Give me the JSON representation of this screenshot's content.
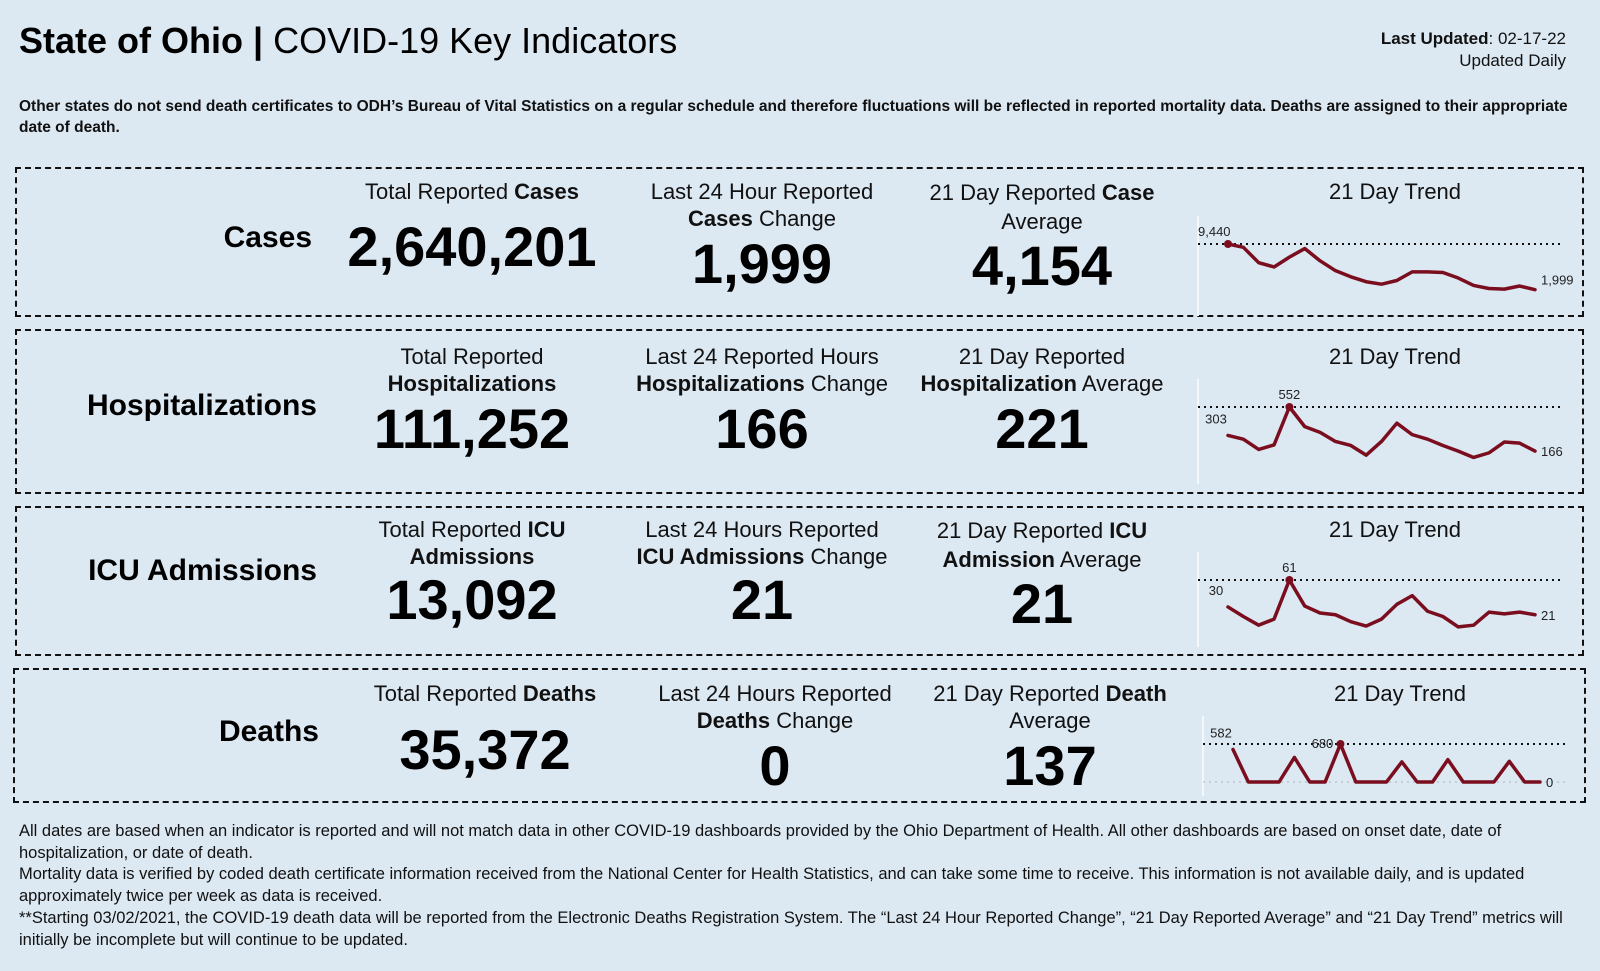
{
  "header": {
    "title_bold": "State of Ohio |",
    "title_rest": " COVID-19 Key Indicators",
    "last_updated_label": "Last Updated",
    "last_updated_value": ": 02-17-22",
    "update_frequency": "Updated Daily"
  },
  "top_note": "Other states do not send death certificates to ODH’s Bureau of Vital Statistics on a regular schedule and therefore fluctuations will be reflected in reported mortality data. Deaths are assigned to their appropriate date of death.",
  "rows": [
    {
      "label": "Cases",
      "total": {
        "pre": "Total Reported ",
        "bold": "Cases",
        "post": "",
        "value": "2,640,201"
      },
      "change": {
        "pre": "Last 24 Hour Reported ",
        "bold": "Cases",
        "post": " Change",
        "value": "1,999"
      },
      "average": {
        "pre": "21 Day Reported ",
        "bold": "Case",
        "post": " Average",
        "value": "4,154"
      },
      "trend": {
        "title": "21 Day Trend",
        "start_label": "9,440",
        "max_label": "",
        "end_label": "1,999"
      }
    },
    {
      "label": "Hospitalizations",
      "total": {
        "pre": "Total Reported ",
        "bold": "Hospitalizations",
        "post": "",
        "value": "111,252"
      },
      "change": {
        "pre": "Last 24 Reported Hours ",
        "bold": "Hospitalizations",
        "post": " Change",
        "value": "166"
      },
      "average": {
        "pre": "21 Day Reported ",
        "bold": "Hospitalization",
        "post": " Average",
        "value": "221"
      },
      "trend": {
        "title": "21 Day Trend",
        "start_label": "303",
        "max_label": "552",
        "end_label": "166"
      }
    },
    {
      "label": "ICU Admissions",
      "total": {
        "pre": "Total Reported ",
        "bold": "ICU Admissions",
        "post": "",
        "value": "13,092"
      },
      "change": {
        "pre": "Last 24 Hours Reported ",
        "bold": "ICU Admissions",
        "post": " Change",
        "value": "21"
      },
      "average": {
        "pre": "21 Day Reported ",
        "bold": "ICU Admission",
        "post": " Average",
        "value": "21"
      },
      "trend": {
        "title": "21 Day Trend",
        "start_label": "30",
        "max_label": "61",
        "end_label": "21"
      }
    },
    {
      "label": "Deaths",
      "total": {
        "pre": "Total Reported ",
        "bold": "Deaths",
        "post": "",
        "value": "35,372"
      },
      "change": {
        "pre": "Last 24 Hours Reported ",
        "bold": "Deaths",
        "post": " Change",
        "value": "0"
      },
      "average": {
        "pre": "21 Day Reported ",
        "bold": "Death",
        "post": " Average",
        "value": "137"
      },
      "trend": {
        "title": "21 Day Trend",
        "start_label": "582",
        "max_label": "680",
        "end_label": "0"
      }
    }
  ],
  "chart_data": [
    {
      "type": "line",
      "title": "Cases 21 Day Trend",
      "color": "#7a0e1e",
      "values_note": "Only the start (9,440) and end (1,999) values are printed on the source image. Intermediate values are visually estimated from line position and are approximations, not reported data.",
      "printed_values": {
        "start": 9440,
        "end": 1999
      },
      "values_estimated": [
        9440,
        8900,
        6400,
        5700,
        7300,
        8700,
        6700,
        5100,
        4100,
        3300,
        2900,
        3500,
        4900,
        4900,
        4800,
        3900,
        2700,
        2200,
        2100,
        2600,
        1999
      ],
      "max_line": 9440
    },
    {
      "type": "line",
      "title": "Hospitalizations 21 Day Trend",
      "color": "#7a0e1e",
      "values_note": "Printed values: start 303, max 552, end 166. Intermediate values are visually estimated and are approximations, not reported data.",
      "printed_values": {
        "start": 303,
        "max": 552,
        "end": 166
      },
      "values_estimated": [
        303,
        270,
        180,
        220,
        552,
        380,
        330,
        250,
        215,
        130,
        250,
        410,
        310,
        270,
        215,
        165,
        110,
        150,
        245,
        235,
        166
      ],
      "max_line": 552
    },
    {
      "type": "line",
      "title": "ICU Admissions 21 Day Trend",
      "color": "#7a0e1e",
      "values_note": "Printed values: start 30, max 61, end 21. Intermediate values are visually estimated and are approximations, not reported data.",
      "printed_values": {
        "start": 30,
        "max": 61,
        "end": 21
      },
      "values_estimated": [
        30,
        19,
        9,
        16,
        61,
        31,
        23,
        21,
        13,
        8,
        16,
        33,
        43,
        25,
        19,
        7,
        9,
        24,
        22,
        24,
        21
      ],
      "max_line": 61
    },
    {
      "type": "line",
      "title": "Deaths 21 Day Trend",
      "color": "#7a0e1e",
      "values_note": "Printed values: start 582, max 680, end 0. Intermediate values are visually estimated and are approximations, not reported data.",
      "printed_values": {
        "start": 582,
        "max": 680,
        "end": 0
      },
      "values_estimated": [
        582,
        0,
        0,
        0,
        440,
        0,
        0,
        680,
        0,
        0,
        0,
        360,
        0,
        0,
        400,
        0,
        0,
        0,
        370,
        0,
        0
      ],
      "max_line": 680
    }
  ],
  "footer": [
    "All dates are based when an indicator is reported and will not match data in other COVID-19 dashboards provided by the Ohio Department of Health. All other dashboards are based on onset date, date of hospitalization, or date of death.",
    "Mortality data is verified by coded death certificate information received from the National Center for Health Statistics, and can take some time to receive. This information is not available daily, and is updated approximately twice per week as data is received.",
    "**Starting 03/02/2021, the COVID-19 death data will be reported from the Electronic Deaths Registration System. The “Last 24 Hour Reported Change”, “21 Day Reported Average” and “21 Day Trend” metrics will initially be incomplete but will continue to be updated."
  ]
}
